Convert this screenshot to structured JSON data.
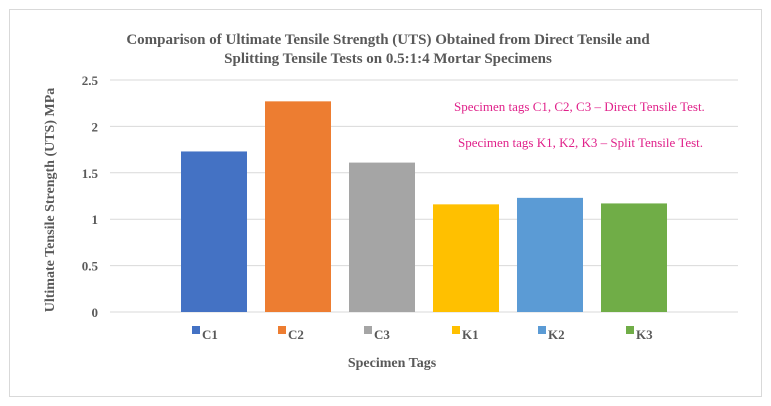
{
  "chart_data": {
    "type": "bar",
    "title_lines": [
      "Comparison of Ultimate Tensile Strength (UTS) Obtained from Direct Tensile and",
      "Splitting Tensile Tests on 0.5:1:4 Mortar Specimens"
    ],
    "xlabel": "Specimen Tags",
    "ylabel": "Ultimate Tensile Strength (UTS) MPa",
    "ylim": [
      0,
      2.5
    ],
    "yticks": [
      "0",
      "0.5",
      "1",
      "1.5",
      "2",
      "2.5"
    ],
    "ytick_values": [
      0,
      0.5,
      1,
      1.5,
      2,
      2.5
    ],
    "grid": true,
    "categories": [
      "C1",
      "C2",
      "C3",
      "K1",
      "K2",
      "K3"
    ],
    "values": [
      1.73,
      2.27,
      1.61,
      1.16,
      1.23,
      1.17
    ],
    "colors": [
      "#4472c4",
      "#ed7d31",
      "#a5a5a5",
      "#ffc000",
      "#5b9bd5",
      "#70ad47"
    ],
    "legend_position": "bottom",
    "annotations": [
      "Specimen tags C1, C2, C3 – Direct Tensile Test.",
      "Specimen tags K1, K2, K3 – Split Tensile Test."
    ],
    "annotation_color": "#e0218a"
  }
}
